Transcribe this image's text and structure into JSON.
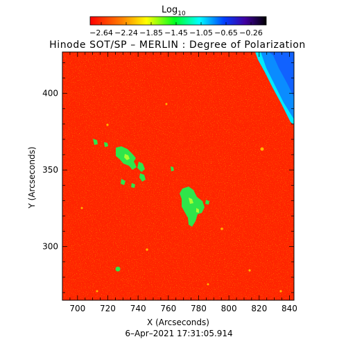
{
  "header": {
    "colorbar_label": "Log",
    "colorbar_label_sub": "10",
    "colorbar_ticks": [
      "−2.64",
      "−2.24",
      "−1.85",
      "−1.45",
      "−1.05",
      "−0.65",
      "−0.26"
    ],
    "title": "Hinode SOT/SP – MERLIN : Degree of Polarization"
  },
  "axes": {
    "xlabel": "X (Arcseconds)",
    "ylabel": "Y (Arcseconds)",
    "xticks": [
      "700",
      "720",
      "740",
      "760",
      "780",
      "800",
      "820",
      "840"
    ],
    "yticks": [
      "300",
      "350",
      "400"
    ]
  },
  "footer": {
    "timestamp": "6–Apr–2021 17:31:05.914"
  },
  "image": {
    "type": "polarization-map",
    "colormap": [
      "#ff0000",
      "#ff7f00",
      "#ffff00",
      "#00ff00",
      "#00ffff",
      "#0000ff",
      "#200040",
      "#000000"
    ],
    "background_color": "#ff2200",
    "x_range": [
      690,
      843
    ],
    "y_range": [
      265,
      427
    ]
  }
}
